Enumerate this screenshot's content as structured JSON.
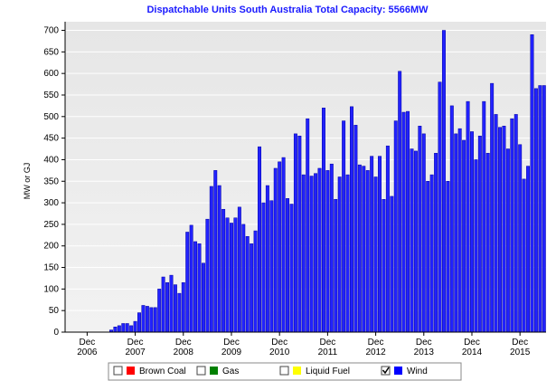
{
  "chart_data": {
    "type": "bar",
    "title": "Dispatchable Units South Australia Total Capacity: 5566MW",
    "y_label": "MW or GJ",
    "categories": [
      null,
      null,
      null,
      null,
      null,
      "Dec 2006",
      null,
      null,
      null,
      null,
      null,
      null,
      null,
      null,
      null,
      null,
      null,
      "Dec 2007",
      null,
      null,
      null,
      null,
      null,
      null,
      null,
      null,
      null,
      null,
      null,
      "Dec 2008",
      null,
      null,
      null,
      null,
      null,
      null,
      null,
      null,
      null,
      null,
      null,
      "Dec 2009",
      null,
      null,
      null,
      null,
      null,
      null,
      null,
      null,
      null,
      null,
      null,
      "Dec 2010",
      null,
      null,
      null,
      null,
      null,
      null,
      null,
      null,
      null,
      null,
      null,
      "Dec 2011",
      null,
      null,
      null,
      null,
      null,
      null,
      null,
      null,
      null,
      null,
      null,
      "Dec 2012",
      null,
      null,
      null,
      null,
      null,
      null,
      null,
      null,
      null,
      null,
      null,
      "Dec 2013",
      null,
      null,
      null,
      null,
      null,
      null,
      null,
      null,
      null,
      null,
      null,
      "Dec 2014",
      null,
      null,
      null,
      null,
      null,
      null,
      null,
      null,
      null,
      null,
      null,
      "Dec 2015",
      null,
      null,
      null,
      null,
      null,
      null
    ],
    "series": [
      {
        "name": "Wind",
        "color": "#2222ff",
        "values": [
          0,
          0,
          0,
          0,
          0,
          0,
          0,
          0,
          0,
          0,
          0,
          5,
          12,
          15,
          20,
          20,
          15,
          25,
          45,
          62,
          60,
          57,
          57,
          100,
          128,
          115,
          132,
          110,
          90,
          115,
          232,
          248,
          210,
          205,
          160,
          262,
          338,
          375,
          340,
          285,
          265,
          253,
          265,
          290,
          250,
          222,
          205,
          235,
          430,
          300,
          340,
          305,
          380,
          395,
          405,
          310,
          297,
          460,
          455,
          365,
          495,
          362,
          368,
          380,
          520,
          375,
          390,
          308,
          360,
          490,
          365,
          523,
          480,
          388,
          385,
          375,
          408,
          360,
          408,
          308,
          432,
          315,
          490,
          605,
          510,
          512,
          425,
          420,
          478,
          460,
          350,
          365,
          415,
          580,
          700,
          350,
          525,
          460,
          472,
          445,
          535,
          465,
          400,
          455,
          535,
          415,
          577,
          505,
          475,
          478,
          425,
          495,
          505,
          435,
          355,
          385,
          690,
          565,
          572,
          572
        ]
      }
    ],
    "legend": [
      {
        "name": "Brown Coal",
        "color": "#ff0000",
        "checked": false
      },
      {
        "name": "Gas",
        "color": "#008000",
        "checked": false
      },
      {
        "name": "Liquid Fuel",
        "color": "#ffff00",
        "checked": false
      },
      {
        "name": "Wind",
        "color": "#0000ff",
        "checked": true
      }
    ],
    "ylim": [
      0,
      720
    ],
    "yticks": [
      0,
      50,
      100,
      150,
      200,
      250,
      300,
      350,
      400,
      450,
      500,
      550,
      600,
      650,
      700
    ],
    "grid": true
  }
}
